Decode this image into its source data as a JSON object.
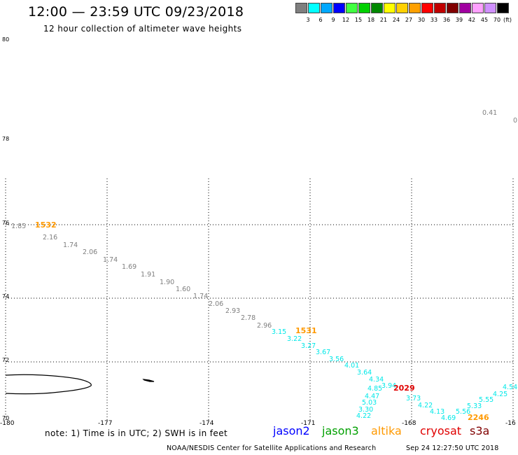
{
  "header": {
    "title": "12:00 — 23:59 UTC 09/23/2018",
    "subtitle": "12 hour collection of altimeter wave heights"
  },
  "colorbar": {
    "labels": [
      "3",
      "6",
      "9",
      "12",
      "15",
      "18",
      "21",
      "24",
      "27",
      "30",
      "33",
      "36",
      "39",
      "42",
      "45",
      "70"
    ],
    "unit": "(ft)",
    "colors": [
      "#7f7f7f",
      "#00ffff",
      "#00a8ff",
      "#0000ff",
      "#40ff40",
      "#00d000",
      "#008800",
      "#ffff00",
      "#ffd000",
      "#ffa000",
      "#ff0000",
      "#c00000",
      "#800000",
      "#a000a0",
      "#ffa0ff",
      "#d090ff",
      "#000000"
    ]
  },
  "map": {
    "lat_labels": [
      "80",
      "78",
      "76",
      "74",
      "72",
      "70"
    ],
    "lon_labels": [
      "-180",
      "-177",
      "-174",
      "-171",
      "-168",
      "-16"
    ]
  },
  "wave_heights": [
    {
      "v": "0.41",
      "c": "#7f7f7f"
    },
    {
      "v": "0",
      "c": "#7f7f7f"
    },
    {
      "v": "1.85",
      "c": "#7f7f7f"
    },
    {
      "v": "2.16",
      "c": "#7f7f7f"
    },
    {
      "v": "1.74",
      "c": "#7f7f7f"
    },
    {
      "v": "2.06",
      "c": "#7f7f7f"
    },
    {
      "v": "1.74",
      "c": "#7f7f7f"
    },
    {
      "v": "1.69",
      "c": "#7f7f7f"
    },
    {
      "v": "1.91",
      "c": "#7f7f7f"
    },
    {
      "v": "1.90",
      "c": "#7f7f7f"
    },
    {
      "v": "1.60",
      "c": "#7f7f7f"
    },
    {
      "v": "1.74",
      "c": "#7f7f7f"
    },
    {
      "v": "2.06",
      "c": "#7f7f7f"
    },
    {
      "v": "2.93",
      "c": "#7f7f7f"
    },
    {
      "v": "2.78",
      "c": "#7f7f7f"
    },
    {
      "v": "2.96",
      "c": "#7f7f7f"
    },
    {
      "v": "3.15",
      "c": "#00e8e8"
    },
    {
      "v": "3.22",
      "c": "#00e8e8"
    },
    {
      "v": "3.27",
      "c": "#00e8e8"
    },
    {
      "v": "3.67",
      "c": "#00e8e8"
    },
    {
      "v": "3.56",
      "c": "#00e8e8"
    },
    {
      "v": "4.01",
      "c": "#00e8e8"
    },
    {
      "v": "3.64",
      "c": "#00e8e8"
    },
    {
      "v": "4.34",
      "c": "#00e8e8"
    },
    {
      "v": "3.94",
      "c": "#00e8e8"
    },
    {
      "v": "4.85",
      "c": "#00e8e8"
    },
    {
      "v": "4.47",
      "c": "#00e8e8"
    },
    {
      "v": "5.03",
      "c": "#00e8e8"
    },
    {
      "v": "3.30",
      "c": "#00e8e8"
    },
    {
      "v": "4.22",
      "c": "#00e8e8"
    },
    {
      "v": "3.73",
      "c": "#00e8e8"
    },
    {
      "v": "4.22",
      "c": "#00e8e8"
    },
    {
      "v": "4.13",
      "c": "#00e8e8"
    },
    {
      "v": "4.69",
      "c": "#00e8e8"
    },
    {
      "v": "5.56",
      "c": "#00e8e8"
    },
    {
      "v": "5.33",
      "c": "#00e8e8"
    },
    {
      "v": "5.55",
      "c": "#00e8e8"
    },
    {
      "v": "4.25",
      "c": "#00e8e8"
    },
    {
      "v": "4.54",
      "c": "#00e8e8"
    }
  ],
  "time_labels": [
    {
      "v": "1532",
      "c": "#ff9900"
    },
    {
      "v": "1531",
      "c": "#ff9900"
    },
    {
      "v": "2029",
      "c": "#e00000"
    },
    {
      "v": "2246",
      "c": "#ff9900"
    }
  ],
  "footer": {
    "note": "note:  1) Time is in UTC;  2) SWH is in feet",
    "satellites": [
      {
        "name": "jason2",
        "color": "#0000ff"
      },
      {
        "name": "jason3",
        "color": "#00a000"
      },
      {
        "name": "altika",
        "color": "#ff9900"
      },
      {
        "name": "cryosat",
        "color": "#e00000"
      },
      {
        "name": "s3a",
        "color": "#800000"
      }
    ],
    "credit": "NOAA/NESDIS Center for Satellite Applications and Research",
    "timestamp": "Sep 24 12:27:50 UTC 2018"
  }
}
